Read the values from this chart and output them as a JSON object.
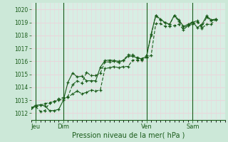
{
  "xlabel": "Pression niveau de la mer( hPa )",
  "bg_color": "#cce8d8",
  "plot_bg_color": "#d8eee4",
  "grid_color": "#e8d8dc",
  "line_color": "#1a5c1a",
  "ylim": [
    1011.5,
    1020.5
  ],
  "xlim": [
    0,
    126
  ],
  "day_positions": [
    3,
    21,
    75,
    105
  ],
  "day_labels": [
    "Jeu",
    "Dim",
    "Ven",
    "Sam"
  ],
  "vline_positions": [
    3,
    21,
    75,
    105
  ],
  "x": [
    0,
    3,
    6,
    9,
    12,
    15,
    18,
    21,
    24,
    27,
    30,
    33,
    36,
    39,
    42,
    45,
    48,
    51,
    54,
    57,
    60,
    63,
    66,
    69,
    72,
    75,
    78,
    81,
    84,
    87,
    90,
    93,
    96,
    99,
    102,
    105,
    108,
    111,
    114,
    117,
    120
  ],
  "values1": [
    1012.4,
    1012.6,
    1012.65,
    1012.55,
    1012.2,
    1012.2,
    1012.3,
    1013.0,
    1014.4,
    1015.1,
    1014.8,
    1014.85,
    1014.5,
    1014.5,
    1014.5,
    1015.55,
    1016.05,
    1016.1,
    1016.05,
    1016.0,
    1016.05,
    1016.4,
    1016.4,
    1016.25,
    1016.2,
    1016.35,
    1018.1,
    1019.55,
    1019.25,
    1019.0,
    1018.85,
    1019.55,
    1019.2,
    1018.7,
    1018.85,
    1019.05,
    1018.6,
    1018.85,
    1019.5,
    1019.2,
    1019.25
  ],
  "values2": [
    1012.4,
    1012.5,
    1012.6,
    1012.75,
    1012.8,
    1012.9,
    1013.0,
    1013.1,
    1013.3,
    1014.2,
    1014.5,
    1014.3,
    1015.15,
    1014.9,
    1014.9,
    1015.1,
    1015.95,
    1015.95,
    1016.0,
    1015.9,
    1016.1,
    1016.5,
    1016.5,
    1016.3,
    1016.2,
    1016.45,
    1018.0,
    1019.5,
    1019.2,
    1018.95,
    1018.85,
    1019.5,
    1019.1,
    1018.6,
    1018.75,
    1019.0,
    1019.15,
    1018.65,
    1019.4,
    1019.15,
    1019.2
  ],
  "values3": [
    1012.4,
    1012.5,
    1012.15,
    1012.2,
    1012.8,
    1012.9,
    1013.1,
    1013.2,
    1013.2,
    1013.5,
    1013.7,
    1013.5,
    1013.6,
    1013.8,
    1013.7,
    1013.8,
    1015.45,
    1015.5,
    1015.6,
    1015.5,
    1015.6,
    1015.6,
    1016.1,
    1016.1,
    1016.1,
    1016.3,
    1016.45,
    1018.9,
    1018.9,
    1018.7,
    1018.7,
    1018.75,
    1018.85,
    1018.45,
    1018.75,
    1018.85,
    1019.05,
    1018.55,
    1018.85,
    1018.85,
    1019.25
  ]
}
